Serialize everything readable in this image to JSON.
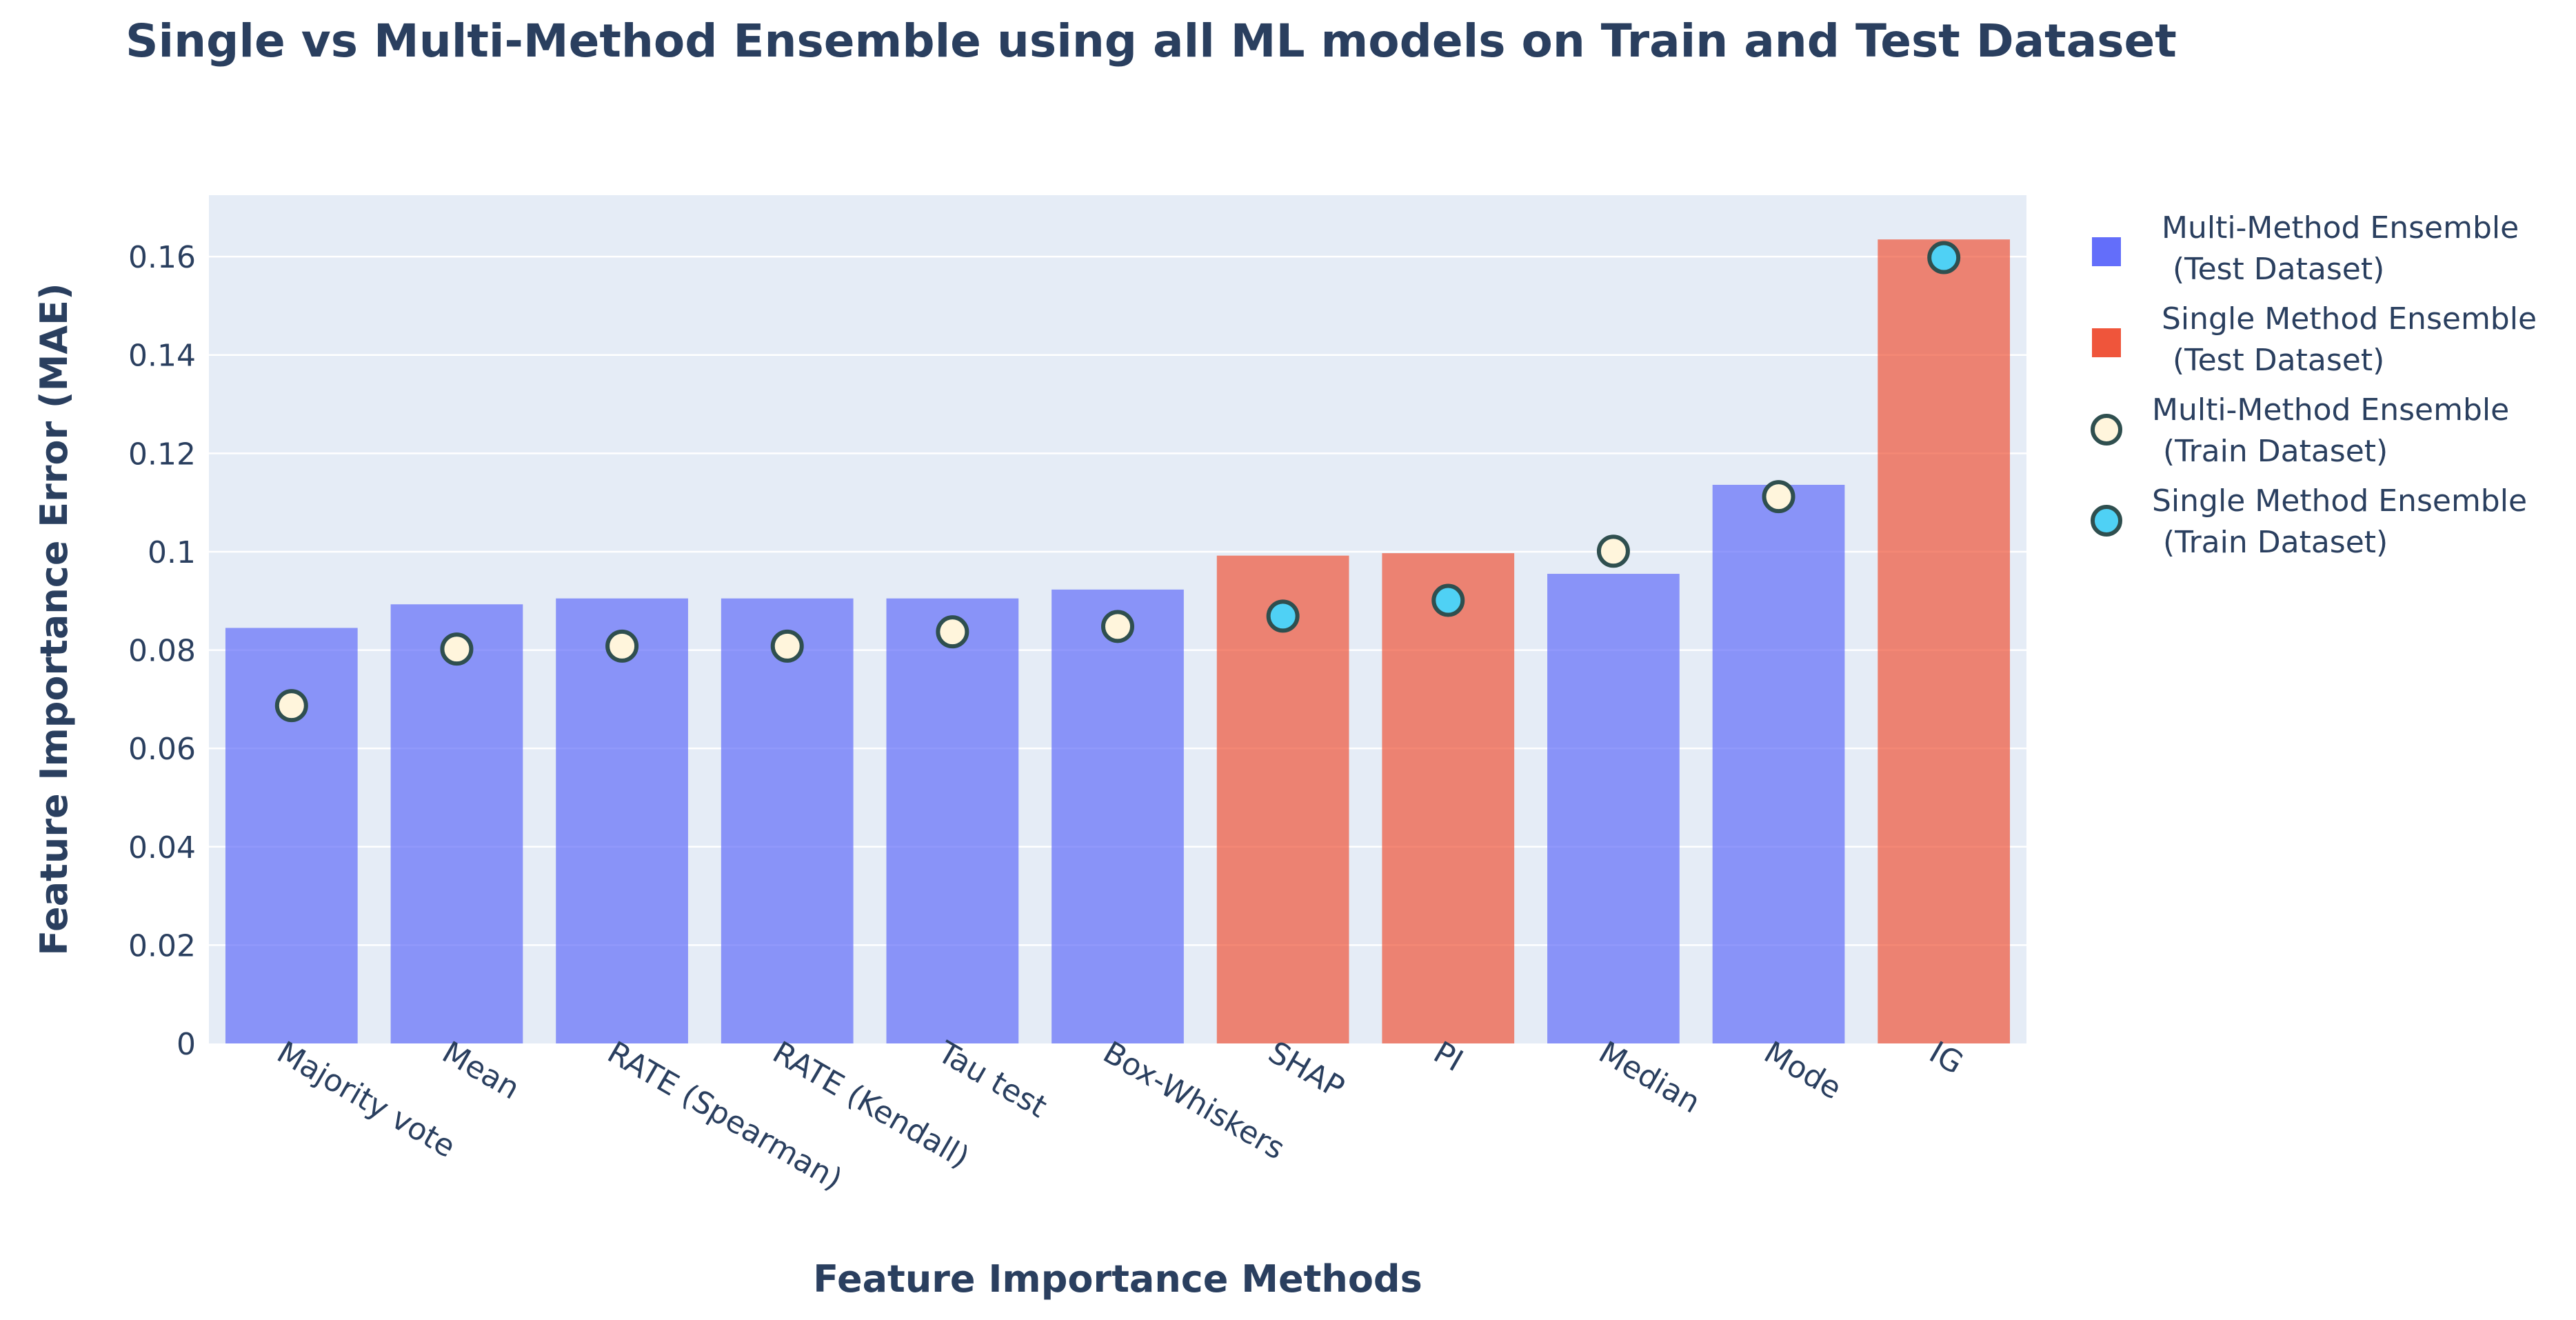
{
  "chart_data": {
    "type": "bar",
    "title": "Single vs Multi-Method Ensemble using all ML models on Train and Test Dataset",
    "xlabel": "Feature Importance Methods",
    "ylabel": "Feature Importance Error (MAE)",
    "ylim": [
      0,
      0.1725
    ],
    "yticks": [
      0,
      0.02,
      0.04,
      0.06,
      0.08,
      0.1,
      0.12,
      0.14,
      0.16
    ],
    "ytick_labels": [
      "0",
      "0.02",
      "0.04",
      "0.06",
      "0.08",
      "0.1",
      "0.12",
      "0.14",
      "0.16"
    ],
    "grid": true,
    "legend_position": "right",
    "categories": [
      "Majority vote",
      "Mean",
      "RATE (Spearman)",
      "RATE (Kendall)",
      "Tau test",
      "Box-Whiskers",
      "SHAP",
      "PI",
      "Median",
      "Mode",
      "IG"
    ],
    "bars": {
      "values": [
        0.0845,
        0.0893,
        0.0905,
        0.0905,
        0.0905,
        0.0923,
        0.0992,
        0.0997,
        0.0955,
        0.1136,
        0.1635
      ],
      "groups": [
        "multi",
        "multi",
        "multi",
        "multi",
        "multi",
        "multi",
        "single",
        "single",
        "multi",
        "multi",
        "single"
      ]
    },
    "markers": {
      "values": [
        0.0687,
        0.0802,
        0.0808,
        0.0808,
        0.0837,
        0.0848,
        0.0869,
        0.0901,
        0.1001,
        0.1112,
        0.1598
      ],
      "groups": [
        "multi",
        "multi",
        "multi",
        "multi",
        "multi",
        "multi",
        "single",
        "single",
        "multi",
        "multi",
        "single"
      ]
    },
    "series": [
      {
        "name": "Multi-Method Ensemble (Test Dataset)",
        "kind": "bar",
        "group": "multi",
        "color": "#636efa"
      },
      {
        "name": "Single Method Ensemble (Test Dataset)",
        "kind": "bar",
        "group": "single",
        "color": "#ef553b"
      },
      {
        "name": "Multi-Method Ensemble (Train Dataset)",
        "kind": "marker",
        "group": "multi",
        "color": "#fff5dc"
      },
      {
        "name": "Single Method Ensemble (Train Dataset)",
        "kind": "marker",
        "group": "single",
        "color": "#4fd1f5"
      }
    ],
    "legend": [
      {
        "line1": "Multi-Method Ensemble",
        "line2": "(Test Dataset)",
        "symbol": "square",
        "color": "#636efa"
      },
      {
        "line1": "Single Method Ensemble",
        "line2": "(Test Dataset)",
        "symbol": "square",
        "color": "#ef553b"
      },
      {
        "line1": "Multi-Method Ensemble",
        "line2": "(Train  Dataset)",
        "symbol": "circle",
        "color": "#fff5dc"
      },
      {
        "line1": "Single Method Ensemble",
        "line2": "(Train  Dataset)",
        "symbol": "circle",
        "color": "#4fd1f5"
      }
    ],
    "colors": {
      "plot_background": "#e5ecf6",
      "gridline": "#ffffff",
      "text": "#2a3f5f",
      "marker_outline": "#2f4f4f"
    }
  }
}
